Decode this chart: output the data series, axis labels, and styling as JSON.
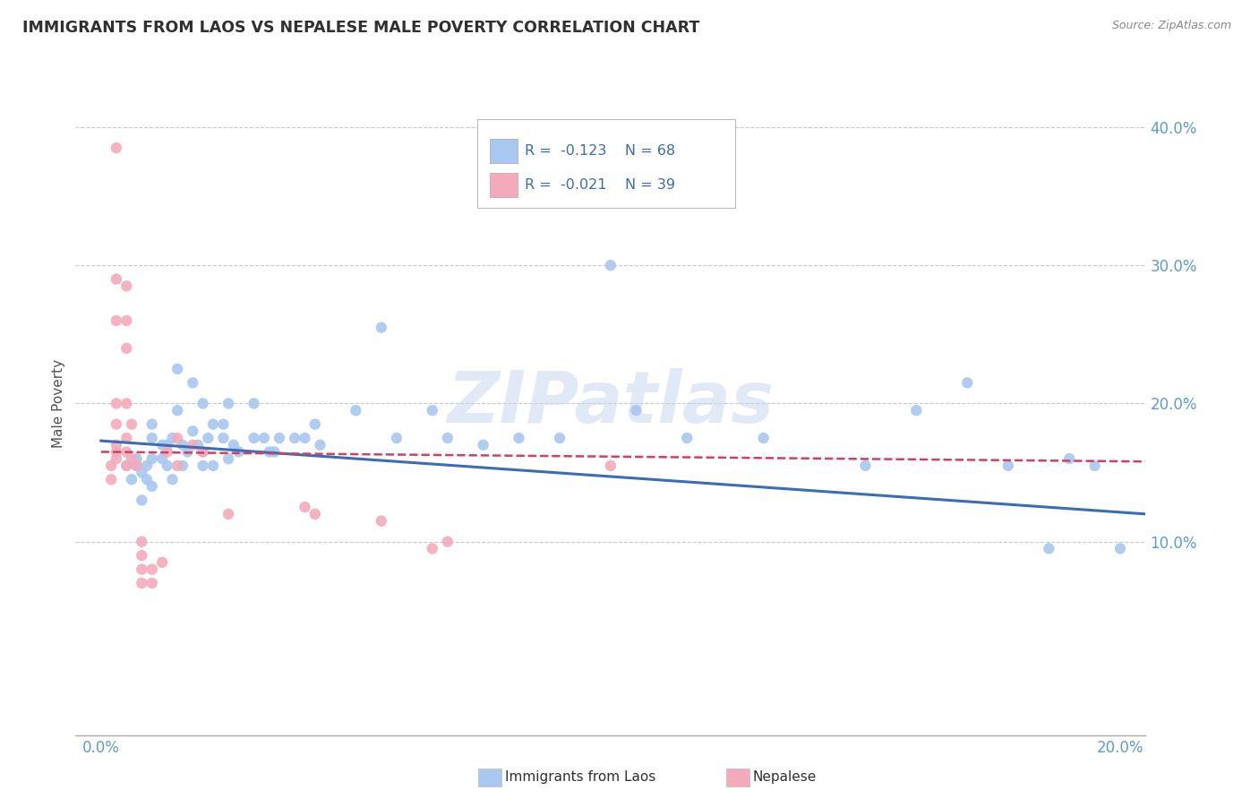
{
  "title": "IMMIGRANTS FROM LAOS VS NEPALESE MALE POVERTY CORRELATION CHART",
  "source": "Source: ZipAtlas.com",
  "ylabel": "Male Poverty",
  "watermark": "ZIPatlas",
  "legend_blue_r": "R = -0.123",
  "legend_blue_n": "N = 68",
  "legend_pink_r": "R = -0.021",
  "legend_pink_n": "N = 39",
  "ytick_labels": [
    "10.0%",
    "20.0%",
    "30.0%",
    "40.0%"
  ],
  "ytick_values": [
    0.1,
    0.2,
    0.3,
    0.4
  ],
  "xtick_labels": [
    "0.0%",
    "20.0%"
  ],
  "xtick_values": [
    0.0,
    0.2
  ],
  "xlim": [
    -0.005,
    0.205
  ],
  "ylim": [
    -0.04,
    0.44
  ],
  "blue_color": "#A8C8F0",
  "pink_color": "#F4AABB",
  "blue_line_color": "#3B6CB7",
  "pink_line_color": "#D04060",
  "grid_color": "#C8C8C8",
  "title_color": "#303030",
  "axis_label_color": "#5B9BD5",
  "legend_text_color": "#3B6CB7",
  "legend_r_color": "#D04060",
  "blue_scatter": [
    [
      0.005,
      0.155
    ],
    [
      0.006,
      0.145
    ],
    [
      0.007,
      0.155
    ],
    [
      0.007,
      0.16
    ],
    [
      0.008,
      0.13
    ],
    [
      0.008,
      0.15
    ],
    [
      0.009,
      0.155
    ],
    [
      0.009,
      0.145
    ],
    [
      0.01,
      0.14
    ],
    [
      0.01,
      0.16
    ],
    [
      0.01,
      0.175
    ],
    [
      0.01,
      0.185
    ],
    [
      0.012,
      0.17
    ],
    [
      0.012,
      0.16
    ],
    [
      0.013,
      0.155
    ],
    [
      0.013,
      0.17
    ],
    [
      0.014,
      0.145
    ],
    [
      0.014,
      0.175
    ],
    [
      0.015,
      0.195
    ],
    [
      0.015,
      0.225
    ],
    [
      0.016,
      0.155
    ],
    [
      0.016,
      0.17
    ],
    [
      0.017,
      0.165
    ],
    [
      0.018,
      0.215
    ],
    [
      0.018,
      0.18
    ],
    [
      0.019,
      0.17
    ],
    [
      0.02,
      0.155
    ],
    [
      0.02,
      0.165
    ],
    [
      0.02,
      0.2
    ],
    [
      0.021,
      0.175
    ],
    [
      0.022,
      0.185
    ],
    [
      0.022,
      0.155
    ],
    [
      0.024,
      0.185
    ],
    [
      0.024,
      0.175
    ],
    [
      0.025,
      0.16
    ],
    [
      0.025,
      0.2
    ],
    [
      0.026,
      0.17
    ],
    [
      0.027,
      0.165
    ],
    [
      0.03,
      0.175
    ],
    [
      0.03,
      0.2
    ],
    [
      0.032,
      0.175
    ],
    [
      0.033,
      0.165
    ],
    [
      0.034,
      0.165
    ],
    [
      0.035,
      0.175
    ],
    [
      0.038,
      0.175
    ],
    [
      0.04,
      0.175
    ],
    [
      0.042,
      0.185
    ],
    [
      0.043,
      0.17
    ],
    [
      0.05,
      0.195
    ],
    [
      0.055,
      0.255
    ],
    [
      0.058,
      0.175
    ],
    [
      0.065,
      0.195
    ],
    [
      0.068,
      0.175
    ],
    [
      0.075,
      0.17
    ],
    [
      0.082,
      0.175
    ],
    [
      0.09,
      0.175
    ],
    [
      0.1,
      0.3
    ],
    [
      0.105,
      0.195
    ],
    [
      0.115,
      0.175
    ],
    [
      0.13,
      0.175
    ],
    [
      0.15,
      0.155
    ],
    [
      0.16,
      0.195
    ],
    [
      0.17,
      0.215
    ],
    [
      0.178,
      0.155
    ],
    [
      0.186,
      0.095
    ],
    [
      0.19,
      0.16
    ],
    [
      0.195,
      0.155
    ],
    [
      0.2,
      0.095
    ]
  ],
  "pink_scatter": [
    [
      0.002,
      0.155
    ],
    [
      0.002,
      0.145
    ],
    [
      0.003,
      0.165
    ],
    [
      0.003,
      0.16
    ],
    [
      0.003,
      0.17
    ],
    [
      0.003,
      0.185
    ],
    [
      0.003,
      0.2
    ],
    [
      0.003,
      0.26
    ],
    [
      0.003,
      0.29
    ],
    [
      0.003,
      0.385
    ],
    [
      0.005,
      0.155
    ],
    [
      0.005,
      0.165
    ],
    [
      0.005,
      0.175
    ],
    [
      0.005,
      0.2
    ],
    [
      0.005,
      0.24
    ],
    [
      0.005,
      0.26
    ],
    [
      0.005,
      0.285
    ],
    [
      0.006,
      0.16
    ],
    [
      0.006,
      0.185
    ],
    [
      0.007,
      0.155
    ],
    [
      0.008,
      0.07
    ],
    [
      0.008,
      0.08
    ],
    [
      0.008,
      0.09
    ],
    [
      0.008,
      0.1
    ],
    [
      0.01,
      0.07
    ],
    [
      0.01,
      0.08
    ],
    [
      0.012,
      0.085
    ],
    [
      0.013,
      0.165
    ],
    [
      0.015,
      0.155
    ],
    [
      0.015,
      0.175
    ],
    [
      0.018,
      0.17
    ],
    [
      0.02,
      0.165
    ],
    [
      0.025,
      0.12
    ],
    [
      0.04,
      0.125
    ],
    [
      0.042,
      0.12
    ],
    [
      0.055,
      0.115
    ],
    [
      0.065,
      0.095
    ],
    [
      0.068,
      0.1
    ],
    [
      0.1,
      0.155
    ]
  ],
  "blue_trendline": [
    [
      0.0,
      0.173
    ],
    [
      0.205,
      0.12
    ]
  ],
  "pink_trendline": [
    [
      0.0,
      0.165
    ],
    [
      0.205,
      0.158
    ]
  ],
  "bottom_legend_items": [
    {
      "label": "Immigrants from Laos",
      "color": "#A8C8F0"
    },
    {
      "label": "Nepalese",
      "color": "#F4AABB"
    }
  ]
}
